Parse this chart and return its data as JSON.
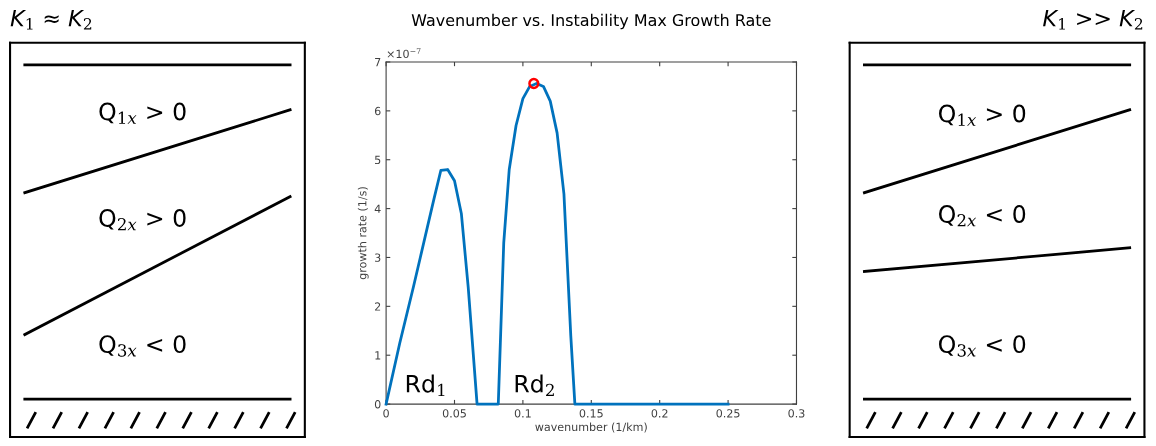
{
  "chart_data": [
    {
      "type": "other",
      "title": "K$_{1}$ ≈ K$_{2}$",
      "annotations": [
        "Q$_{1x}$ > 0",
        "Q$_{2x}$ > 0",
        "Q$_{3x}$ < 0"
      ]
    },
    {
      "type": "line",
      "title": "Wavenumber vs. Instability Max Growth Rate",
      "xlabel": "wavenumber (1/km)",
      "ylabel": "growth rate (1/s)",
      "xlim": [
        0,
        0.3
      ],
      "xticks": [
        0,
        0.05,
        0.1,
        0.15,
        0.2,
        0.25,
        0.3
      ],
      "ylim": [
        0,
        7
      ],
      "yticks": [
        0,
        1,
        2,
        3,
        4,
        5,
        6,
        7
      ],
      "grid": false,
      "series": [
        {
          "type": "line",
          "color": "#0072bd",
          "marker": "none",
          "x": [
            0,
            0.01,
            0.02,
            0.025,
            0.03,
            0.035,
            0.04,
            0.045,
            0.05,
            0.055,
            0.06,
            0.0665,
            0.082,
            0.086,
            0.09,
            0.095,
            0.1,
            0.105,
            0.11,
            0.115,
            0.12,
            0.125,
            0.13,
            0.135,
            0.138,
            0.25
          ],
          "values": [
            0,
            1.25,
            2.4,
            3.0,
            3.6,
            4.2,
            4.78,
            4.8,
            4.57,
            3.9,
            2.4,
            0,
            0,
            3.3,
            4.8,
            5.7,
            6.25,
            6.5,
            6.56,
            6.5,
            6.2,
            5.55,
            4.3,
            1.4,
            0,
            0
          ]
        },
        {
          "type": "scatter",
          "color": "#ff0000",
          "marker": "circle",
          "x": [
            0.108
          ],
          "values": [
            6.56
          ]
        }
      ],
      "annotations": [
        "Rd$_{1}$",
        "Rd$_{2}$",
        "×10$^{−7}$"
      ]
    },
    {
      "type": "other",
      "title": "K$_{1}$ >> K$_{2}$",
      "annotations": [
        "Q$_{1x}$ > 0",
        "Q$_{2x}$ < 0",
        "Q$_{3x}$ < 0"
      ]
    }
  ]
}
